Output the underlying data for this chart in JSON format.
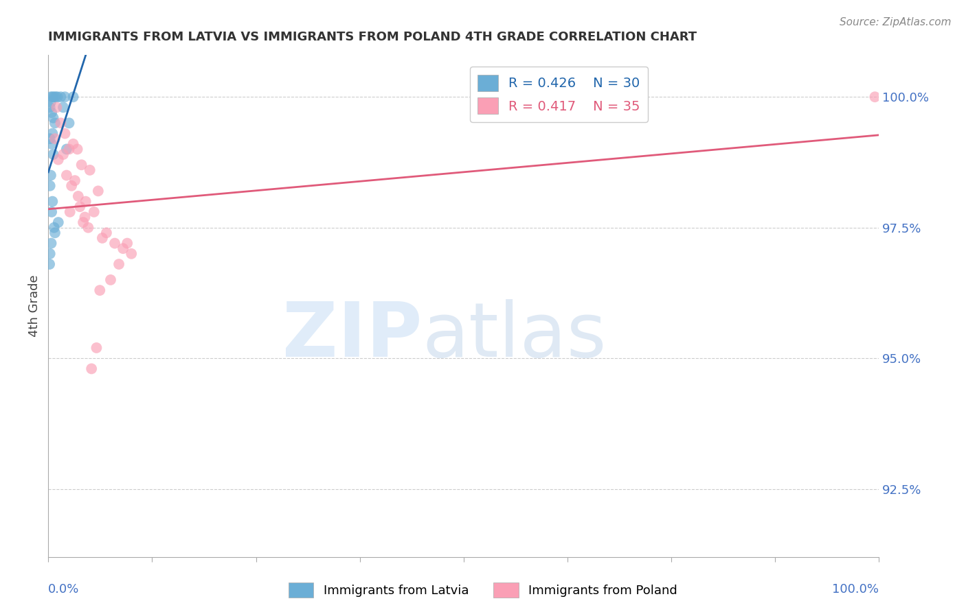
{
  "title": "IMMIGRANTS FROM LATVIA VS IMMIGRANTS FROM POLAND 4TH GRADE CORRELATION CHART",
  "source": "Source: ZipAtlas.com",
  "ylabel": "4th Grade",
  "yticks": [
    92.5,
    95.0,
    97.5,
    100.0
  ],
  "ytick_labels": [
    "92.5%",
    "95.0%",
    "97.5%",
    "100.0%"
  ],
  "xlim": [
    0.0,
    100.0
  ],
  "ylim": [
    91.2,
    100.8
  ],
  "latvia_color": "#6baed6",
  "poland_color": "#fa9fb5",
  "latvia_line_color": "#2166ac",
  "poland_line_color": "#e05a7a",
  "legend_R_latvia": "R = 0.426",
  "legend_N_latvia": "N = 30",
  "legend_R_poland": "R = 0.417",
  "legend_N_poland": "N = 35",
  "latvia_x": [
    0.3,
    0.5,
    0.7,
    0.9,
    1.1,
    0.2,
    0.4,
    0.6,
    0.8,
    1.5,
    0.3,
    0.5,
    0.2,
    0.4,
    2.0,
    1.8,
    0.6,
    0.3,
    0.2,
    0.5,
    0.4,
    0.7,
    0.8,
    1.2,
    3.0,
    2.5,
    2.2,
    0.2,
    0.15,
    0.35
  ],
  "latvia_y": [
    100.0,
    100.0,
    100.0,
    100.0,
    100.0,
    99.8,
    99.7,
    99.6,
    99.5,
    100.0,
    99.9,
    99.3,
    99.2,
    99.1,
    100.0,
    99.8,
    98.9,
    98.5,
    98.3,
    98.0,
    97.8,
    97.5,
    97.4,
    97.6,
    100.0,
    99.5,
    99.0,
    97.0,
    96.8,
    97.2
  ],
  "poland_x": [
    1.0,
    1.5,
    0.8,
    2.0,
    1.2,
    1.8,
    2.5,
    3.0,
    3.5,
    4.0,
    2.2,
    2.8,
    3.2,
    5.0,
    6.0,
    4.5,
    5.5,
    3.8,
    4.2,
    4.8,
    6.5,
    7.0,
    8.0,
    9.0,
    10.0,
    9.5,
    8.5,
    7.5,
    6.2,
    5.8,
    5.2,
    4.4,
    3.6,
    2.6,
    99.5
  ],
  "poland_y": [
    99.8,
    99.5,
    99.2,
    99.3,
    98.8,
    98.9,
    99.0,
    99.1,
    99.0,
    98.7,
    98.5,
    98.3,
    98.4,
    98.6,
    98.2,
    98.0,
    97.8,
    97.9,
    97.6,
    97.5,
    97.3,
    97.4,
    97.2,
    97.1,
    97.0,
    97.2,
    96.8,
    96.5,
    96.3,
    95.2,
    94.8,
    97.7,
    98.1,
    97.8,
    100.0
  ],
  "background_color": "#ffffff",
  "grid_color": "#cccccc",
  "tick_label_color": "#4472c4",
  "title_color": "#333333",
  "ylabel_color": "#444444"
}
